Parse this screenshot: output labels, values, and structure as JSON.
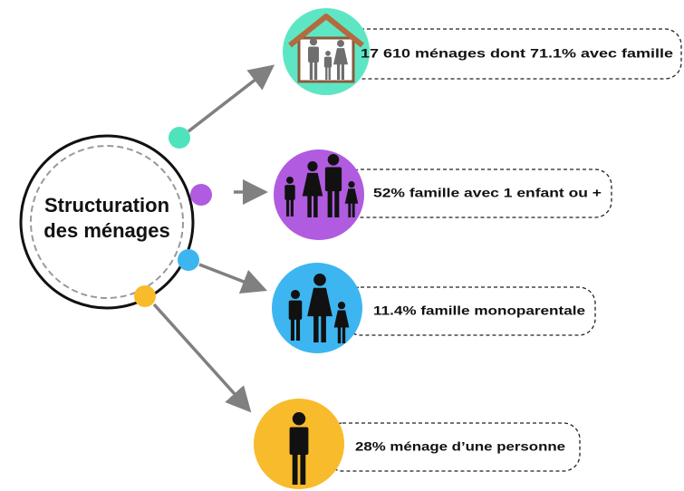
{
  "center": {
    "lines": [
      "Structuration",
      "des ménages"
    ]
  },
  "items": [
    {
      "text": "17 610 ménages dont 71.1% avec famille"
    },
    {
      "text": "52% famille avec 1 enfant ou +"
    },
    {
      "text": "11.4% famille monoparentale"
    },
    {
      "text": "28% ménage d’une personne"
    }
  ]
}
